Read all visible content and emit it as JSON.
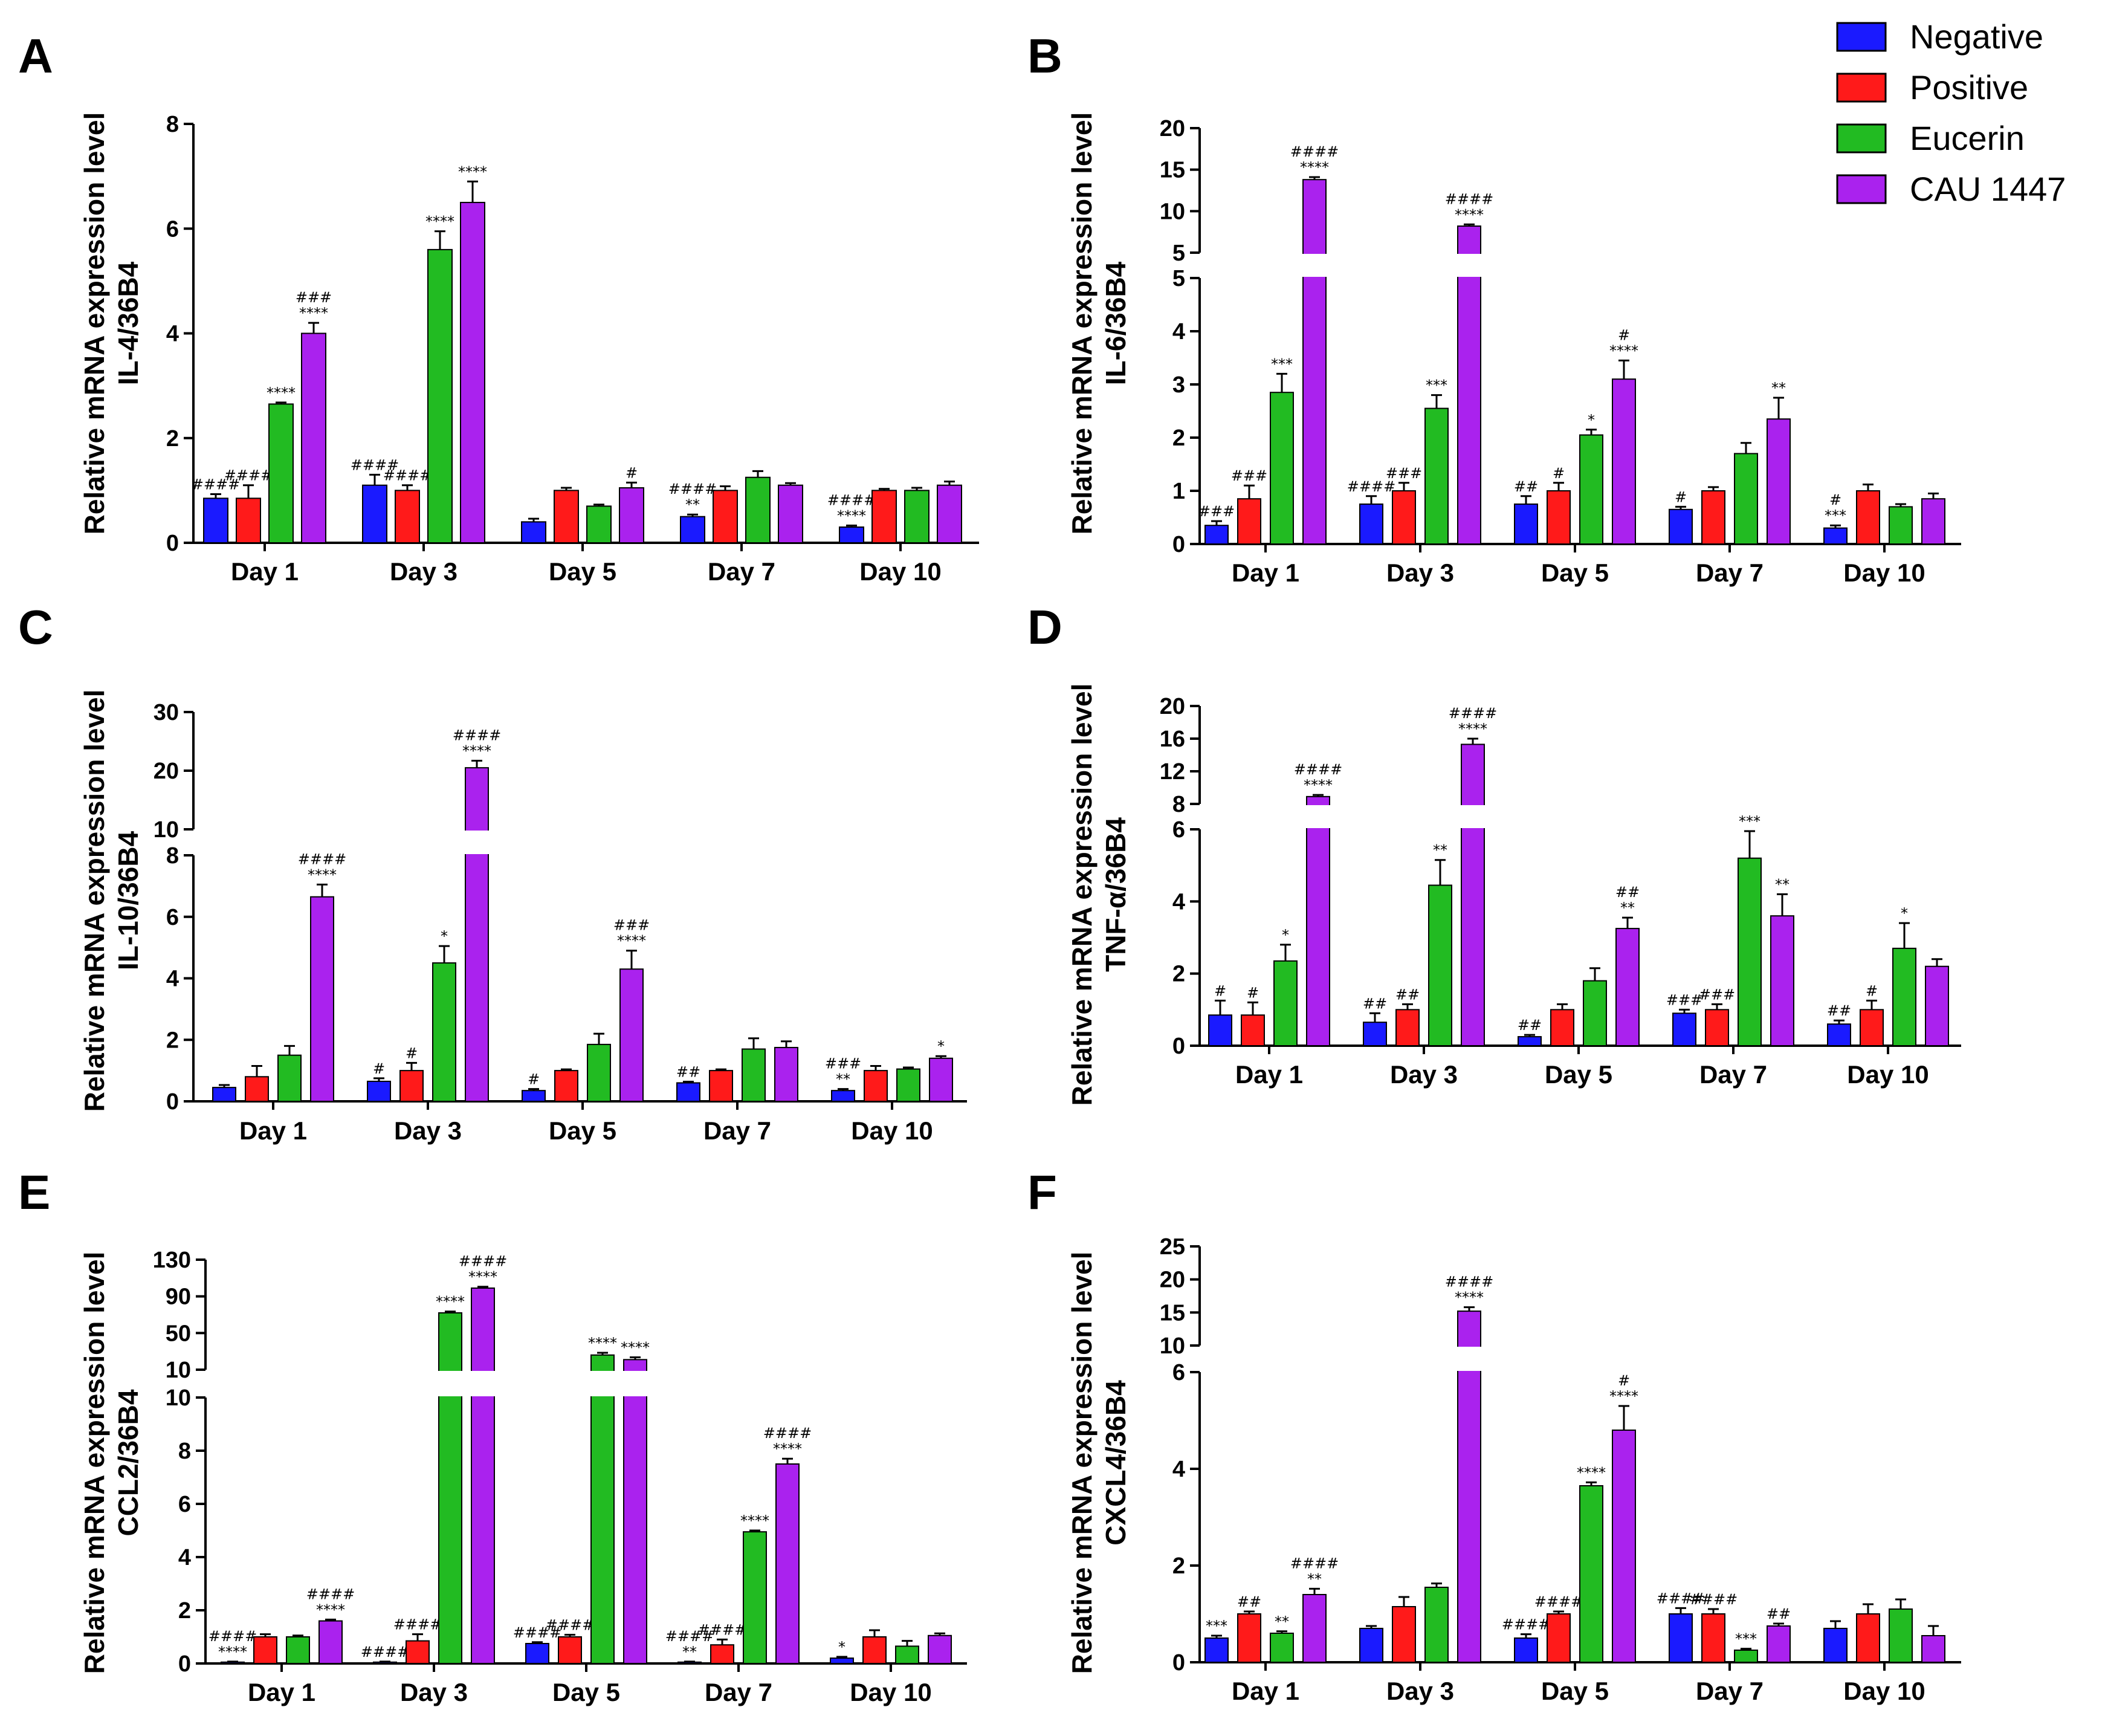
{
  "legend": {
    "items": [
      {
        "label": "Negative",
        "color": "#1a1aff"
      },
      {
        "label": "Positive",
        "color": "#ff1a1a"
      },
      {
        "label": "Eucerin",
        "color": "#22bb22"
      },
      {
        "label": "CAU 1447",
        "color": "#aa22ee"
      }
    ]
  },
  "chart_data": [
    {
      "panel": "A",
      "type": "bar",
      "ylabel": [
        "Relative mRNA expression level",
        "IL-4/36B4"
      ],
      "categories": [
        "Day 1",
        "Day 3",
        "Day 5",
        "Day 7",
        "Day 10"
      ],
      "ylim": [
        0,
        8
      ],
      "ticks": [
        "0",
        "2",
        "4",
        "6",
        "8"
      ],
      "series": [
        {
          "name": "Negative",
          "values": [
            0.85,
            1.1,
            0.4,
            0.5,
            0.3
          ],
          "errors": [
            0.08,
            0.2,
            0.06,
            0.04,
            0.03
          ]
        },
        {
          "name": "Positive",
          "values": [
            0.85,
            1.0,
            1.0,
            1.0,
            1.0
          ],
          "errors": [
            0.25,
            0.1,
            0.05,
            0.08,
            0.03
          ]
        },
        {
          "name": "Eucerin",
          "values": [
            2.65,
            5.6,
            0.7,
            1.25,
            1.0
          ],
          "errors": [
            0.03,
            0.35,
            0.03,
            0.12,
            0.05
          ]
        },
        {
          "name": "CAU 1447",
          "values": [
            4.0,
            6.5,
            1.05,
            1.1,
            1.1
          ],
          "errors": [
            0.2,
            0.4,
            0.1,
            0.04,
            0.07
          ]
        }
      ],
      "annotations": [
        [
          "####",
          "####",
          "",
          "####\n**",
          "####\n****"
        ],
        [
          "####",
          "####",
          "",
          "",
          ""
        ],
        [
          "****",
          "****",
          "",
          "",
          ""
        ],
        [
          "###\n****",
          "****",
          "#",
          "",
          ""
        ]
      ]
    },
    {
      "panel": "B",
      "type": "bar",
      "ylabel": [
        "Relative mRNA expression level",
        "IL-6/36B4"
      ],
      "categories": [
        "Day 1",
        "Day 3",
        "Day 5",
        "Day 7",
        "Day 10"
      ],
      "ylim": [
        0,
        20
      ],
      "ticks_low": [
        "0",
        "1",
        "2",
        "3",
        "4",
        "5"
      ],
      "ticks_high": [
        "5",
        "10",
        "15",
        "20"
      ],
      "series": [
        {
          "name": "Negative",
          "values": [
            0.35,
            0.75,
            0.75,
            0.65,
            0.3
          ],
          "errors": [
            0.08,
            0.15,
            0.15,
            0.05,
            0.05
          ]
        },
        {
          "name": "Positive",
          "values": [
            0.85,
            1.0,
            1.0,
            1.0,
            1.0
          ],
          "errors": [
            0.25,
            0.15,
            0.15,
            0.07,
            0.12
          ]
        },
        {
          "name": "Eucerin",
          "values": [
            2.85,
            2.55,
            2.05,
            1.7,
            0.7
          ],
          "errors": [
            0.35,
            0.25,
            0.1,
            0.2,
            0.05
          ]
        },
        {
          "name": "CAU 1447",
          "values": [
            13.8,
            8.2,
            3.1,
            2.35,
            0.85
          ],
          "errors": [
            0.3,
            0.2,
            0.35,
            0.4,
            0.1
          ]
        }
      ],
      "annotations": [
        [
          "###",
          "####",
          "##",
          "#",
          "#\n***"
        ],
        [
          "###",
          "###",
          "#",
          "",
          ""
        ],
        [
          "***",
          "***",
          "*",
          "",
          ""
        ],
        [
          "####\n****",
          "####\n****",
          "#\n****",
          "**",
          ""
        ]
      ]
    },
    {
      "panel": "C",
      "type": "bar",
      "ylabel": [
        "Relative mRNA expression level",
        "IL-10/36B4"
      ],
      "categories": [
        "Day 1",
        "Day 3",
        "Day 5",
        "Day 7",
        "Day 10"
      ],
      "ylim": [
        0,
        30
      ],
      "ticks_low": [
        "0",
        "2",
        "4",
        "6",
        "8"
      ],
      "ticks_high": [
        "10",
        "20",
        "30"
      ],
      "series": [
        {
          "name": "Negative",
          "values": [
            0.45,
            0.65,
            0.35,
            0.6,
            0.35
          ],
          "errors": [
            0.08,
            0.1,
            0.05,
            0.04,
            0.05
          ]
        },
        {
          "name": "Positive",
          "values": [
            0.8,
            1.0,
            1.0,
            1.0,
            1.0
          ],
          "errors": [
            0.35,
            0.25,
            0.04,
            0.04,
            0.15
          ]
        },
        {
          "name": "Eucerin",
          "values": [
            1.5,
            4.5,
            1.85,
            1.7,
            1.05
          ],
          "errors": [
            0.3,
            0.55,
            0.35,
            0.35,
            0.05
          ]
        },
        {
          "name": "CAU 1447",
          "values": [
            6.65,
            20.5,
            4.3,
            1.75,
            1.4
          ],
          "errors": [
            0.4,
            1.2,
            0.6,
            0.2,
            0.07
          ]
        }
      ],
      "annotations": [
        [
          "",
          "#",
          "#",
          "##",
          "###\n**"
        ],
        [
          "",
          "#",
          "",
          "",
          ""
        ],
        [
          "",
          "*",
          "",
          "",
          ""
        ],
        [
          "####\n****",
          "####\n****",
          "###\n****",
          "",
          "*"
        ]
      ]
    },
    {
      "panel": "D",
      "type": "bar",
      "ylabel": [
        "Relative mRNA expression level",
        "TNF-α/36B4"
      ],
      "categories": [
        "Day 1",
        "Day 3",
        "Day 5",
        "Day 7",
        "Day 10"
      ],
      "ylim": [
        0,
        20
      ],
      "ticks_low": [
        "0",
        "2",
        "4",
        "6"
      ],
      "ticks_high": [
        "8",
        "12",
        "16",
        "20"
      ],
      "series": [
        {
          "name": "Negative",
          "values": [
            0.85,
            0.65,
            0.25,
            0.9,
            0.6
          ],
          "errors": [
            0.4,
            0.25,
            0.05,
            0.1,
            0.1
          ]
        },
        {
          "name": "Positive",
          "values": [
            0.85,
            1.0,
            1.0,
            1.0,
            1.0
          ],
          "errors": [
            0.35,
            0.15,
            0.15,
            0.15,
            0.25
          ]
        },
        {
          "name": "Eucerin",
          "values": [
            2.35,
            4.45,
            1.8,
            5.2,
            2.7
          ],
          "errors": [
            0.45,
            0.7,
            0.35,
            0.75,
            0.7
          ]
        },
        {
          "name": "CAU 1447",
          "values": [
            8.9,
            15.3,
            3.25,
            3.6,
            2.2
          ],
          "errors": [
            0.2,
            0.7,
            0.3,
            0.6,
            0.2
          ]
        }
      ],
      "annotations": [
        [
          "#",
          "##",
          "##",
          "###",
          "##"
        ],
        [
          "#",
          "##",
          "",
          "###",
          "#"
        ],
        [
          "*",
          "**",
          "",
          "***",
          "*"
        ],
        [
          "####\n****",
          "####\n****",
          "##\n**",
          "**",
          ""
        ]
      ]
    },
    {
      "panel": "E",
      "type": "bar",
      "ylabel": [
        "Relative mRNA expression level",
        "CCL2/36B4"
      ],
      "categories": [
        "Day 1",
        "Day 3",
        "Day 5",
        "Day 7",
        "Day 10"
      ],
      "ylim": [
        0,
        130
      ],
      "ticks_low": [
        "0",
        "2",
        "4",
        "6",
        "8",
        "10"
      ],
      "ticks_high": [
        "10",
        "50",
        "90",
        "130"
      ],
      "series": [
        {
          "name": "Negative",
          "values": [
            0.05,
            0.05,
            0.75,
            0.05,
            0.2
          ],
          "errors": [
            0.02,
            0.02,
            0.05,
            0.02,
            0.05
          ]
        },
        {
          "name": "Positive",
          "values": [
            1.0,
            0.85,
            1.0,
            0.7,
            1.0
          ],
          "errors": [
            0.1,
            0.25,
            0.08,
            0.2,
            0.25
          ]
        },
        {
          "name": "Eucerin",
          "values": [
            1.0,
            72,
            26,
            4.95,
            0.65
          ],
          "errors": [
            0.05,
            1.5,
            2.5,
            0.05,
            0.2
          ]
        },
        {
          "name": "CAU 1447",
          "values": [
            1.6,
            99,
            21,
            7.5,
            1.05
          ],
          "errors": [
            0.05,
            1.5,
            2.5,
            0.2,
            0.08
          ]
        }
      ],
      "annotations": [
        [
          "####\n****",
          "####",
          "####",
          "####\n**",
          "*"
        ],
        [
          "",
          "####",
          "####",
          "####",
          ""
        ],
        [
          "",
          "****",
          "****",
          "****",
          ""
        ],
        [
          "####\n****",
          "####\n****",
          "****",
          "####\n****",
          ""
        ]
      ]
    },
    {
      "panel": "F",
      "type": "bar",
      "ylabel": [
        "Relative mRNA expression level",
        "CXCL4/36B4"
      ],
      "categories": [
        "Day 1",
        "Day 3",
        "Day 5",
        "Day 7",
        "Day 10"
      ],
      "ylim": [
        0,
        25
      ],
      "ticks_low": [
        "0",
        "2",
        "4",
        "6"
      ],
      "ticks_high": [
        "10",
        "15",
        "20",
        "25"
      ],
      "series": [
        {
          "name": "Negative",
          "values": [
            0.5,
            0.7,
            0.5,
            1.0,
            0.7
          ],
          "errors": [
            0.05,
            0.05,
            0.08,
            0.12,
            0.15
          ]
        },
        {
          "name": "Positive",
          "values": [
            1.0,
            1.15,
            1.0,
            1.0,
            1.0
          ],
          "errors": [
            0.05,
            0.2,
            0.05,
            0.1,
            0.2
          ]
        },
        {
          "name": "Eucerin",
          "values": [
            0.6,
            1.55,
            3.65,
            0.25,
            1.1
          ],
          "errors": [
            0.04,
            0.08,
            0.07,
            0.03,
            0.2
          ]
        },
        {
          "name": "CAU 1447",
          "values": [
            1.4,
            15.2,
            4.8,
            0.75,
            0.55
          ],
          "errors": [
            0.12,
            0.6,
            0.5,
            0.05,
            0.2
          ]
        }
      ],
      "annotations": [
        [
          "***",
          "",
          "####",
          "####",
          ""
        ],
        [
          "##",
          "",
          "####",
          "####",
          ""
        ],
        [
          "**",
          "",
          "****",
          "***",
          ""
        ],
        [
          "####\n**",
          "####\n****",
          "#\n****",
          "##",
          ""
        ]
      ]
    }
  ]
}
